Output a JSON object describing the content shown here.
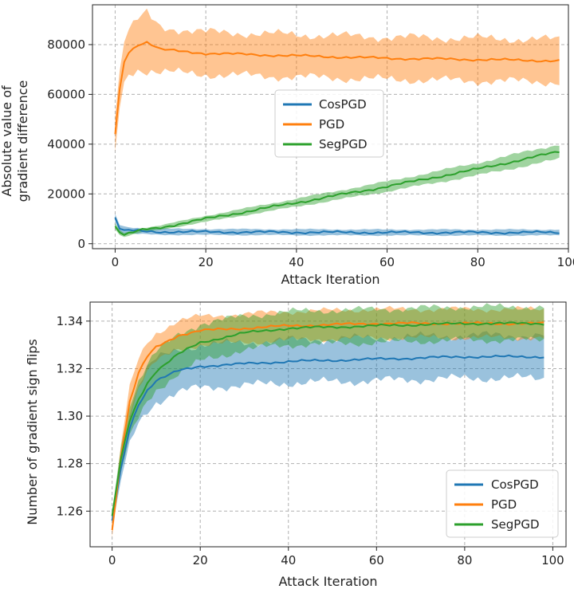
{
  "chart_data": [
    {
      "type": "line",
      "title": "",
      "xlabel": "Attack Iteration",
      "ylabel_lines": [
        "Absolute value of",
        "gradient difference"
      ],
      "xlim": [
        -5,
        100
      ],
      "ylim": [
        -2000,
        96000
      ],
      "xticks": [
        0,
        20,
        40,
        60,
        80,
        100
      ],
      "yticks": [
        0,
        20000,
        40000,
        60000,
        80000
      ],
      "grid": true,
      "legend_position": "center",
      "series": [
        {
          "name": "CosPGD",
          "color": "#1f77b4",
          "x": [
            0,
            1,
            2,
            4,
            6,
            10,
            20,
            40,
            60,
            80,
            98
          ],
          "values": [
            10500,
            6000,
            5500,
            5200,
            5000,
            4800,
            4700,
            4600,
            4500,
            4500,
            4500
          ],
          "band": [
            1500,
            1500,
            1500,
            1300,
            1200,
            1200,
            1200,
            1200,
            1200,
            1200,
            1200
          ]
        },
        {
          "name": "PGD",
          "color": "#ff7f0e",
          "x": [
            0,
            1,
            2,
            3,
            5,
            7,
            10,
            20,
            40,
            60,
            80,
            98
          ],
          "values": [
            44000,
            62000,
            73000,
            77000,
            80000,
            81000,
            78000,
            76500,
            75500,
            74500,
            74000,
            73500
          ],
          "band": [
            7000,
            7500,
            8000,
            9000,
            10000,
            11000,
            9000,
            8500,
            8500,
            8500,
            8500,
            8500
          ]
        },
        {
          "name": "SegPGD",
          "color": "#2ca02c",
          "x": [
            0,
            1,
            2,
            4,
            6,
            10,
            20,
            40,
            60,
            80,
            98
          ],
          "values": [
            7000,
            4500,
            3500,
            4500,
            5500,
            6500,
            10000,
            16500,
            23000,
            30000,
            37000
          ],
          "band": [
            1200,
            1000,
            800,
            800,
            800,
            900,
            1200,
            1600,
            2000,
            2500,
            3000
          ]
        }
      ]
    },
    {
      "type": "line",
      "title": "",
      "xlabel": "Attack Iteration",
      "ylabel_lines": [
        "Number of gradient sign flips"
      ],
      "xlim": [
        -5,
        103
      ],
      "ylim": [
        1.245,
        1.348
      ],
      "xticks": [
        0,
        20,
        40,
        60,
        80,
        100
      ],
      "yticks": [
        1.26,
        1.28,
        1.3,
        1.32,
        1.34
      ],
      "ytick_labels": [
        "1.26",
        "1.28",
        "1.30",
        "1.32",
        "1.34"
      ],
      "grid": true,
      "legend_position": "lower-right",
      "series": [
        {
          "name": "CosPGD",
          "color": "#1f77b4",
          "x": [
            0,
            2,
            4,
            6,
            8,
            10,
            15,
            20,
            30,
            40,
            60,
            80,
            98
          ],
          "values": [
            1.256,
            1.278,
            1.295,
            1.305,
            1.311,
            1.315,
            1.319,
            1.321,
            1.322,
            1.323,
            1.324,
            1.325,
            1.325
          ],
          "band": [
            0.003,
            0.005,
            0.007,
            0.008,
            0.009,
            0.009,
            0.009,
            0.009,
            0.009,
            0.009,
            0.009,
            0.009,
            0.009
          ]
        },
        {
          "name": "PGD",
          "color": "#ff7f0e",
          "x": [
            0,
            2,
            4,
            6,
            8,
            10,
            15,
            20,
            30,
            40,
            60,
            80,
            98
          ],
          "values": [
            1.252,
            1.283,
            1.306,
            1.318,
            1.325,
            1.329,
            1.334,
            1.336,
            1.337,
            1.338,
            1.339,
            1.339,
            1.339
          ],
          "band": [
            0.003,
            0.005,
            0.006,
            0.006,
            0.006,
            0.006,
            0.006,
            0.006,
            0.006,
            0.006,
            0.006,
            0.006,
            0.006
          ]
        },
        {
          "name": "SegPGD",
          "color": "#2ca02c",
          "x": [
            0,
            2,
            4,
            6,
            8,
            10,
            15,
            20,
            30,
            40,
            60,
            80,
            98
          ],
          "values": [
            1.258,
            1.282,
            1.298,
            1.307,
            1.314,
            1.319,
            1.326,
            1.331,
            1.335,
            1.337,
            1.338,
            1.339,
            1.339
          ],
          "band": [
            0.002,
            0.005,
            0.007,
            0.008,
            0.008,
            0.008,
            0.008,
            0.008,
            0.007,
            0.007,
            0.007,
            0.007,
            0.007
          ]
        }
      ]
    }
  ]
}
